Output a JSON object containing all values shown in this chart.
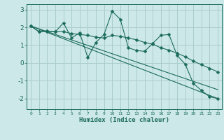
{
  "title": "",
  "xlabel": "Humidex (Indice chaleur)",
  "ylabel": "",
  "bg_color": "#cde8e8",
  "grid_color": "#aacccc",
  "line_color": "#1a6b5a",
  "ylim": [
    -2.6,
    3.3
  ],
  "xlim": [
    -0.5,
    23.5
  ],
  "yticks": [
    -2,
    -1,
    0,
    1,
    2,
    3
  ],
  "xticks": [
    0,
    1,
    2,
    3,
    4,
    5,
    6,
    7,
    8,
    9,
    10,
    11,
    12,
    13,
    14,
    15,
    16,
    17,
    18,
    19,
    20,
    21,
    22,
    23
  ],
  "series1_x": [
    0,
    1,
    2,
    3,
    4,
    5,
    6,
    7,
    8,
    9,
    10,
    11,
    12,
    13,
    14,
    15,
    16,
    17,
    18,
    19,
    20,
    21,
    22,
    23
  ],
  "series1_y": [
    2.07,
    1.75,
    1.8,
    1.75,
    2.25,
    1.4,
    1.7,
    0.3,
    1.15,
    1.6,
    2.9,
    2.45,
    0.85,
    0.7,
    0.65,
    1.1,
    1.55,
    1.6,
    0.42,
    -0.07,
    -1.15,
    -1.55,
    -1.9,
    -2.0
  ],
  "series2_x": [
    0,
    1,
    2,
    3,
    4,
    5,
    6,
    7,
    8,
    9,
    10,
    11,
    12,
    13,
    14,
    15,
    16,
    17,
    18,
    19,
    20,
    21,
    22,
    23
  ],
  "series2_y": [
    2.07,
    1.75,
    1.78,
    1.75,
    1.76,
    1.65,
    1.6,
    1.55,
    1.45,
    1.4,
    1.55,
    1.5,
    1.4,
    1.3,
    1.15,
    1.05,
    0.85,
    0.72,
    0.55,
    0.35,
    0.1,
    -0.1,
    -0.3,
    -0.5
  ],
  "series3_x": [
    0,
    23
  ],
  "series3_y": [
    2.07,
    -1.5
  ],
  "series4_x": [
    0,
    23
  ],
  "series4_y": [
    2.07,
    -2.0
  ]
}
